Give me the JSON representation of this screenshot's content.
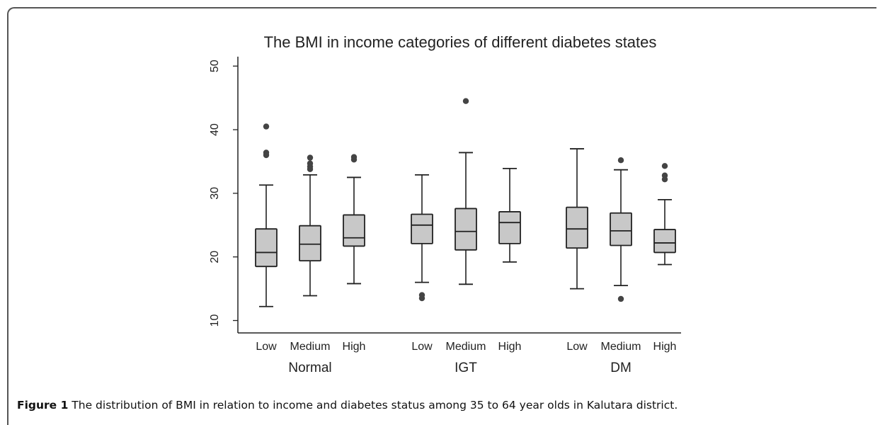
{
  "chart_data": {
    "type": "box",
    "title": "The BMI in income categories of different diabetes states",
    "xlabel": "",
    "ylabel": "",
    "ylim": [
      10,
      50
    ],
    "yticks": [
      "10",
      "20",
      "30",
      "40",
      "50"
    ],
    "groups": [
      "Normal",
      "IGT",
      "DM"
    ],
    "categories": [
      "Low",
      "Medium",
      "High"
    ],
    "grid": false,
    "fill_color": "#c8c8c8",
    "outlier_color": "#444444",
    "series": [
      {
        "group": "Normal",
        "boxes": [
          {
            "category": "Low",
            "whisker_low": 12.2,
            "q1": 18.5,
            "median": 20.7,
            "q3": 24.4,
            "whisker_high": 31.3,
            "outliers": [
              36.0,
              36.4,
              40.5
            ]
          },
          {
            "category": "Medium",
            "whisker_low": 13.9,
            "q1": 19.4,
            "median": 22.0,
            "q3": 24.9,
            "whisker_high": 32.9,
            "outliers": [
              33.8,
              34.2,
              34.7,
              35.6
            ]
          },
          {
            "category": "High",
            "whisker_low": 15.8,
            "q1": 21.7,
            "median": 23.0,
            "q3": 26.6,
            "whisker_high": 32.5,
            "outliers": [
              35.3,
              35.7
            ]
          }
        ]
      },
      {
        "group": "IGT",
        "boxes": [
          {
            "category": "Low",
            "whisker_low": 16.0,
            "q1": 22.1,
            "median": 25.0,
            "q3": 26.7,
            "whisker_high": 32.9,
            "outliers": [
              13.5,
              14.0
            ]
          },
          {
            "category": "Medium",
            "whisker_low": 15.7,
            "q1": 21.1,
            "median": 24.0,
            "q3": 27.6,
            "whisker_high": 36.4,
            "outliers": [
              44.5
            ]
          },
          {
            "category": "High",
            "whisker_low": 19.2,
            "q1": 22.1,
            "median": 25.4,
            "q3": 27.1,
            "whisker_high": 33.9,
            "outliers": []
          }
        ]
      },
      {
        "group": "DM",
        "boxes": [
          {
            "category": "Low",
            "whisker_low": 15.0,
            "q1": 21.4,
            "median": 24.4,
            "q3": 27.8,
            "whisker_high": 37.0,
            "outliers": []
          },
          {
            "category": "Medium",
            "whisker_low": 15.5,
            "q1": 21.8,
            "median": 24.1,
            "q3": 26.9,
            "whisker_high": 33.7,
            "outliers": [
              13.4,
              35.2
            ]
          },
          {
            "category": "High",
            "whisker_low": 18.8,
            "q1": 20.7,
            "median": 22.2,
            "q3": 24.3,
            "whisker_high": 29.0,
            "outliers": [
              32.2,
              32.8,
              34.3
            ]
          }
        ]
      }
    ]
  },
  "caption": {
    "label": "Figure 1",
    "text": " The distribution of BMI in relation to income and diabetes status among 35 to 64 year olds in Kalutara district."
  }
}
